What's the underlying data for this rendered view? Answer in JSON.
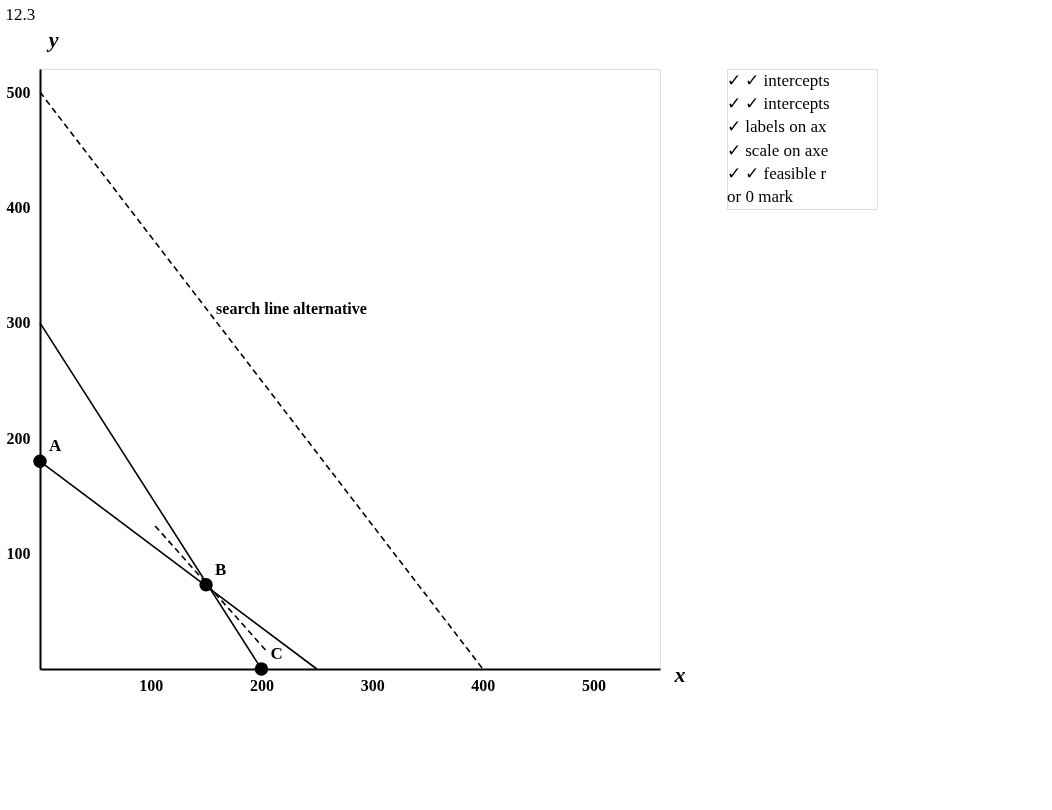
{
  "chart_data": {
    "type": "line",
    "title": "12.3",
    "xlabel": "x",
    "ylabel": "y",
    "xlim": [
      0,
      560
    ],
    "ylim": [
      0,
      520
    ],
    "xticks": [
      100,
      200,
      300,
      400,
      500
    ],
    "yticks": [
      100,
      200,
      300,
      400,
      500
    ],
    "grid": false,
    "series": [
      {
        "x": [
          0,
          200
        ],
        "values": [
          300,
          0
        ],
        "color": "#000000",
        "line_style": "solid"
      },
      {
        "x": [
          0,
          250
        ],
        "values": [
          180,
          0
        ],
        "color": "#000000",
        "line_style": "solid"
      },
      {
        "x": [
          0,
          400
        ],
        "values": [
          500,
          0
        ],
        "color": "#000000",
        "line_style": "dashed"
      },
      {
        "x": [
          104,
          206
        ],
        "values": [
          124,
          14
        ],
        "color": "#000000",
        "line_style": "dashed"
      },
      {
        "type": "scatter",
        "x": [
          0,
          150,
          200
        ],
        "values": [
          180,
          73,
          0
        ],
        "color": "#000000",
        "marker": "circle"
      }
    ],
    "annotations": [
      {
        "text": "A",
        "x": 0,
        "y": 180
      },
      {
        "text": "B",
        "x": 150,
        "y": 73
      },
      {
        "text": "C",
        "x": 200,
        "y": 0
      },
      {
        "text": "search line alternative",
        "x": 150,
        "y": 312
      },
      "✓ ✓ intercepts",
      "✓ ✓ intercepts",
      "✓ labels on ax",
      "✓ scale on axe",
      "✓ ✓ feasible r",
      "or 0 mark"
    ]
  }
}
